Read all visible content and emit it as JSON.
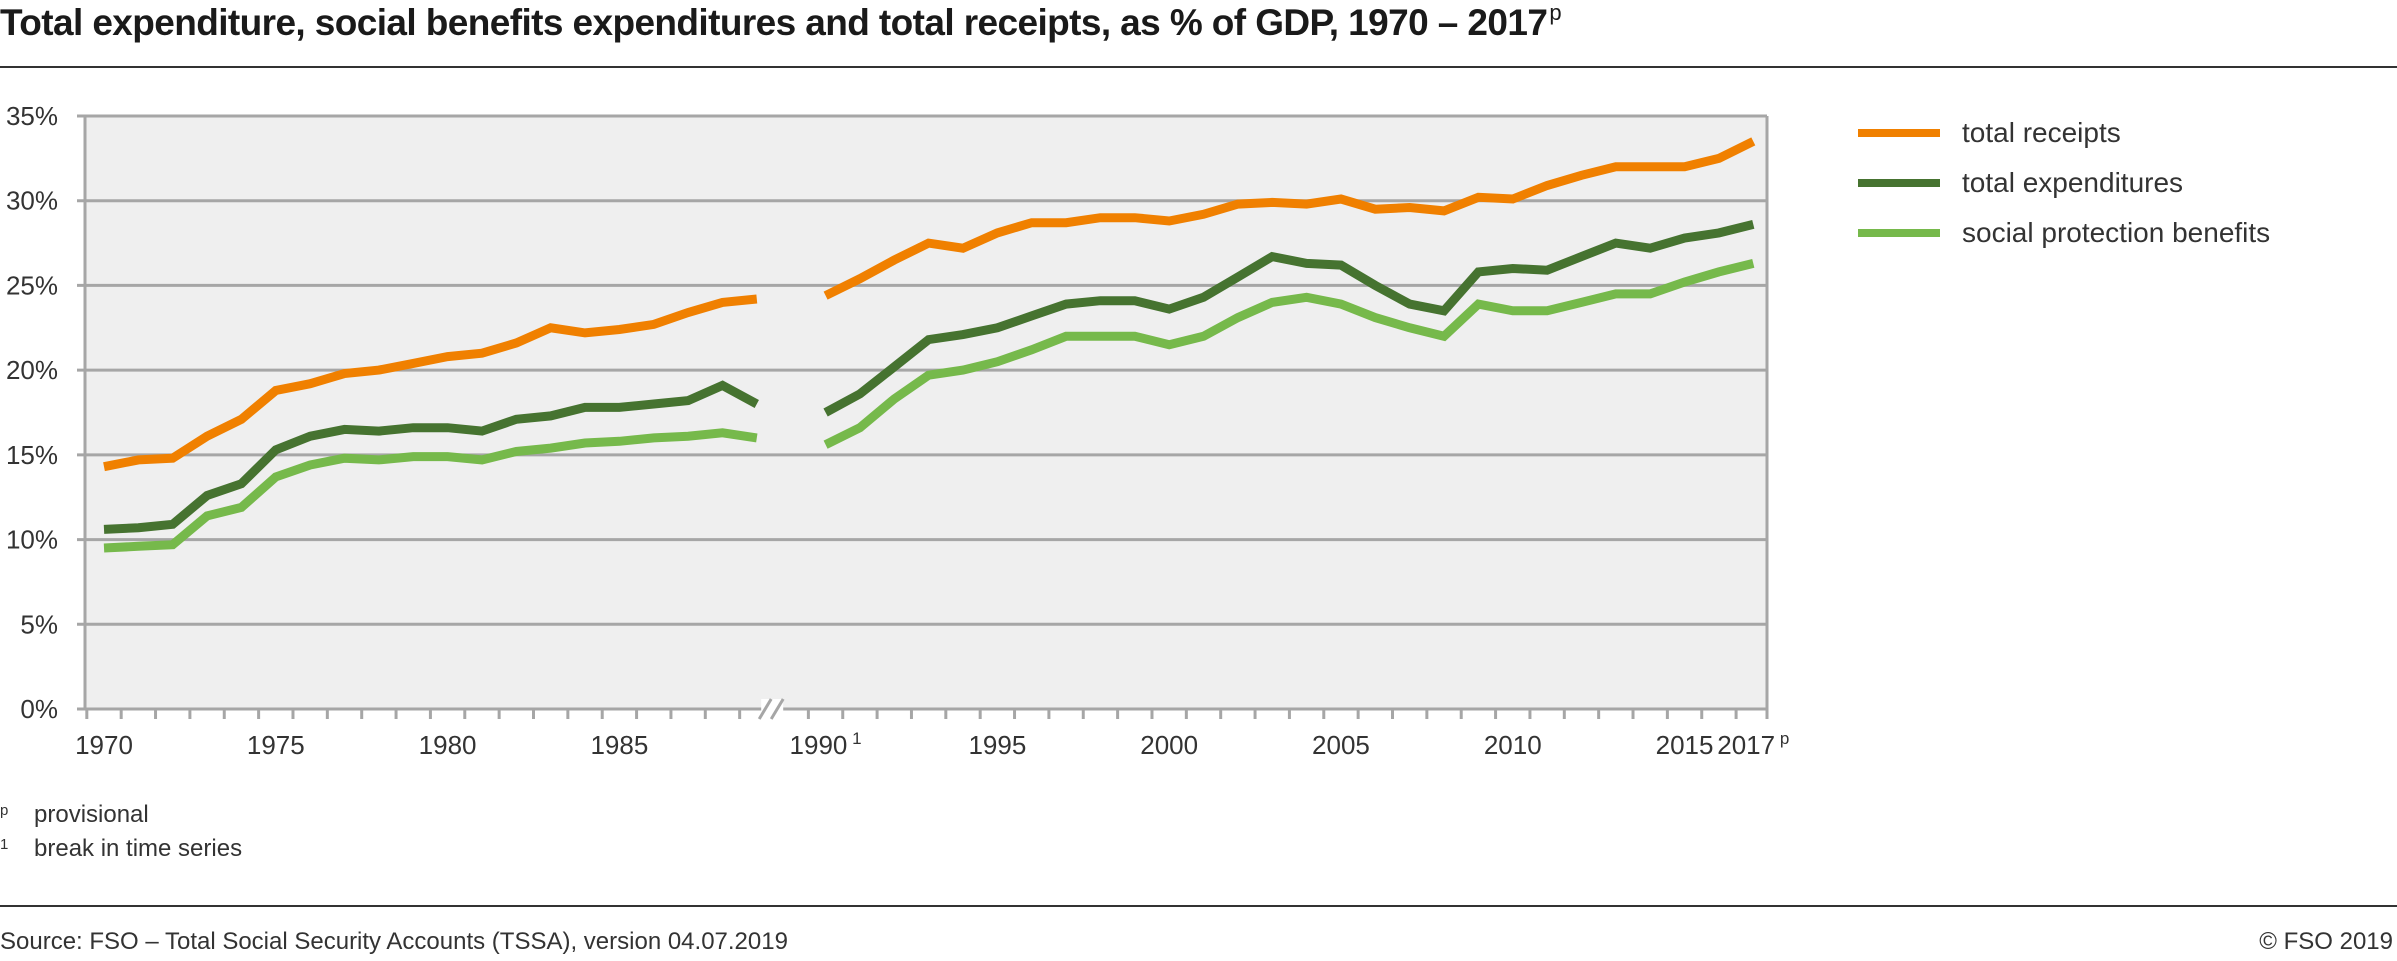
{
  "title": "Total expenditure, social benefits expenditures and total receipts, as % of GDP, 1970 – 2017",
  "title_sup": "p",
  "chart_data": {
    "type": "line",
    "title": "Total expenditure, social benefits expenditures and total receipts, as % of GDP, 1970 – 2017p",
    "xlabel": "",
    "ylabel": "",
    "ylim": [
      0,
      35
    ],
    "yticks": [
      "0%",
      "5%",
      "10%",
      "15%",
      "20%",
      "25%",
      "30%",
      "35%"
    ],
    "ytick_values": [
      0,
      5,
      10,
      15,
      20,
      25,
      30,
      35
    ],
    "xtick_labels": [
      {
        "year": 1970,
        "label": "1970",
        "sup": ""
      },
      {
        "year": 1975,
        "label": "1975",
        "sup": ""
      },
      {
        "year": 1980,
        "label": "1980",
        "sup": ""
      },
      {
        "year": 1985,
        "label": "1985",
        "sup": ""
      },
      {
        "year": 1990,
        "label": "1990",
        "sup": "1"
      },
      {
        "year": 1995,
        "label": "1995",
        "sup": ""
      },
      {
        "year": 2000,
        "label": "2000",
        "sup": ""
      },
      {
        "year": 2005,
        "label": "2005",
        "sup": ""
      },
      {
        "year": 2010,
        "label": "2010",
        "sup": ""
      },
      {
        "year": 2015,
        "label": "2015",
        "sup": ""
      },
      {
        "year": 2017,
        "label": "2017",
        "sup": "p"
      }
    ],
    "axis_break": "between 1989 and 1990",
    "grid": true,
    "legend_position": "right",
    "segments": [
      {
        "years": [
          1970,
          1971,
          1972,
          1973,
          1974,
          1975,
          1976,
          1977,
          1978,
          1979,
          1980,
          1981,
          1982,
          1983,
          1984,
          1985,
          1986,
          1987,
          1988,
          1989
        ]
      },
      {
        "years": [
          1990,
          1991,
          1992,
          1993,
          1994,
          1995,
          1996,
          1997,
          1998,
          1999,
          2000,
          2001,
          2002,
          2003,
          2004,
          2005,
          2006,
          2007,
          2008,
          2009,
          2010,
          2011,
          2012,
          2013,
          2014,
          2015,
          2016,
          2017
        ]
      }
    ],
    "series": [
      {
        "name": "total receipts",
        "color": "#F08000",
        "values_1970_1989": [
          14.3,
          14.7,
          14.8,
          16.1,
          17.1,
          18.8,
          19.2,
          19.8,
          20.0,
          20.4,
          20.8,
          21.0,
          21.6,
          22.5,
          22.2,
          22.4,
          22.7,
          23.4,
          24.0,
          24.2
        ],
        "values_1990_2017": [
          24.4,
          25.4,
          26.5,
          27.5,
          27.2,
          28.1,
          28.7,
          28.7,
          29.0,
          29.0,
          28.8,
          29.2,
          29.8,
          29.9,
          29.8,
          30.1,
          29.5,
          29.6,
          29.4,
          30.2,
          30.1,
          30.9,
          31.5,
          32.0,
          32.0,
          32.0,
          32.5,
          33.5
        ]
      },
      {
        "name": "total expenditures",
        "color": "#467330",
        "values_1970_1989": [
          10.6,
          10.7,
          10.9,
          12.6,
          13.3,
          15.3,
          16.1,
          16.5,
          16.4,
          16.6,
          16.6,
          16.4,
          17.1,
          17.3,
          17.8,
          17.8,
          18.0,
          18.2,
          19.1,
          18.0
        ],
        "values_1990_2017": [
          17.5,
          18.6,
          20.2,
          21.8,
          22.1,
          22.5,
          23.2,
          23.9,
          24.1,
          24.1,
          23.6,
          24.3,
          25.5,
          26.7,
          26.3,
          26.2,
          25.0,
          23.9,
          23.5,
          25.8,
          26.0,
          25.9,
          26.7,
          27.5,
          27.2,
          27.8,
          28.1,
          28.6
        ]
      },
      {
        "name": "social protection benefits",
        "color": "#76B94B",
        "values_1970_1989": [
          9.5,
          9.6,
          9.7,
          11.4,
          11.9,
          13.7,
          14.4,
          14.8,
          14.7,
          14.9,
          14.9,
          14.7,
          15.2,
          15.4,
          15.7,
          15.8,
          16.0,
          16.1,
          16.3,
          16.0
        ],
        "values_1990_2017": [
          15.6,
          16.6,
          18.3,
          19.7,
          20.0,
          20.5,
          21.2,
          22.0,
          22.0,
          22.0,
          21.5,
          22.0,
          23.1,
          24.0,
          24.3,
          23.9,
          23.1,
          22.5,
          22.0,
          23.9,
          23.5,
          23.5,
          24.0,
          24.5,
          24.5,
          25.2,
          25.8,
          26.3
        ]
      }
    ]
  },
  "legend": [
    {
      "label": "total receipts",
      "color": "#F08000"
    },
    {
      "label": "total expenditures",
      "color": "#467330"
    },
    {
      "label": "social protection benefits",
      "color": "#76B94B"
    }
  ],
  "notes": [
    {
      "mark": "p",
      "text": "provisional"
    },
    {
      "mark": "1",
      "text": "break in time series"
    }
  ],
  "source": "Source: FSO – Total Social Security Accounts (TSSA), version 04.07.2019",
  "copyright": "© FSO 2019"
}
